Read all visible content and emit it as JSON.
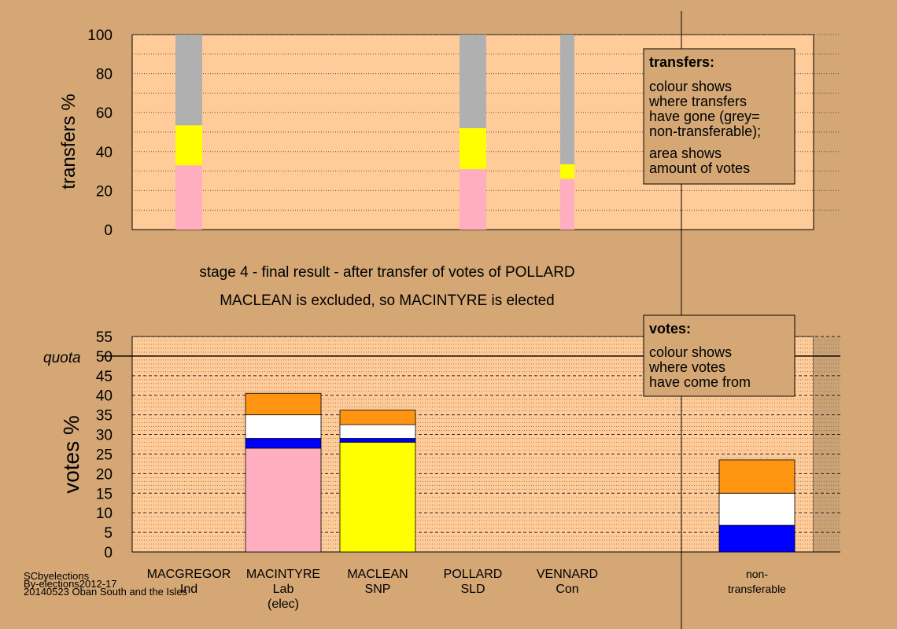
{
  "chart_data": [
    {
      "type": "bar",
      "stacked": true,
      "ylabel": "transfers %",
      "ylim": [
        0,
        100
      ],
      "yticks": [
        0,
        20,
        40,
        60,
        80,
        100
      ],
      "grid": true,
      "categories": [
        "MACINTYRE",
        "MACLEAN",
        "VENNARD"
      ],
      "series": [
        {
          "color": "#ffaec0",
          "values": [
            33,
            31,
            26
          ]
        },
        {
          "color": "#ffff00",
          "values": [
            20.5,
            21,
            7.5
          ]
        },
        {
          "color": "#b0b0b0",
          "values": [
            46.5,
            48,
            66.5
          ]
        }
      ],
      "legend": {
        "title": "transfers:",
        "lines1": [
          "colour shows",
          "where transfers",
          "have gone (grey=",
          "non-transferable);"
        ],
        "lines2": [
          "area shows",
          "amount of votes"
        ]
      }
    },
    {
      "type": "bar",
      "stacked": true,
      "ylabel": "votes %",
      "ylim": [
        0,
        55
      ],
      "yticks": [
        0,
        5,
        10,
        15,
        20,
        25,
        30,
        35,
        40,
        45,
        50,
        55
      ],
      "quota_label": "quota",
      "quota_value": 50,
      "grid": true,
      "categories": [
        {
          "name": "MACGREGOR",
          "party": "Ind",
          "note": ""
        },
        {
          "name": "MACINTYRE",
          "party": "Lab",
          "note": "(elec)"
        },
        {
          "name": "MACLEAN",
          "party": "SNP",
          "note": ""
        },
        {
          "name": "POLLARD",
          "party": "SLD",
          "note": ""
        },
        {
          "name": "VENNARD",
          "party": "Con",
          "note": ""
        },
        {
          "name": "non-",
          "party": "transferable",
          "note": ""
        }
      ],
      "series": [
        {
          "color": "#ffaec0",
          "values": [
            0,
            26.5,
            0,
            0,
            0,
            0
          ]
        },
        {
          "color": "#ffff00",
          "values": [
            0,
            0,
            28,
            0,
            0,
            0
          ]
        },
        {
          "color": "#0000ff",
          "values": [
            0,
            2.5,
            1,
            0,
            0,
            6.8
          ]
        },
        {
          "color": "#ffffff",
          "values": [
            0,
            6,
            3.5,
            0,
            0,
            8.2
          ]
        },
        {
          "color": "#ff9410",
          "values": [
            0,
            5.5,
            3.7,
            0,
            0,
            8.5
          ]
        }
      ],
      "legend": {
        "title": "votes:",
        "lines": [
          "colour shows",
          "where votes",
          "have come from"
        ]
      }
    }
  ],
  "headline": {
    "line1": "stage 4 - final result - after transfer of votes of POLLARD",
    "line2": "MACLEAN is excluded, so MACINTYRE is elected"
  },
  "footer": [
    "SCbyelections",
    "By-elections2012-17",
    "20140523 Oban South and the Isles"
  ]
}
